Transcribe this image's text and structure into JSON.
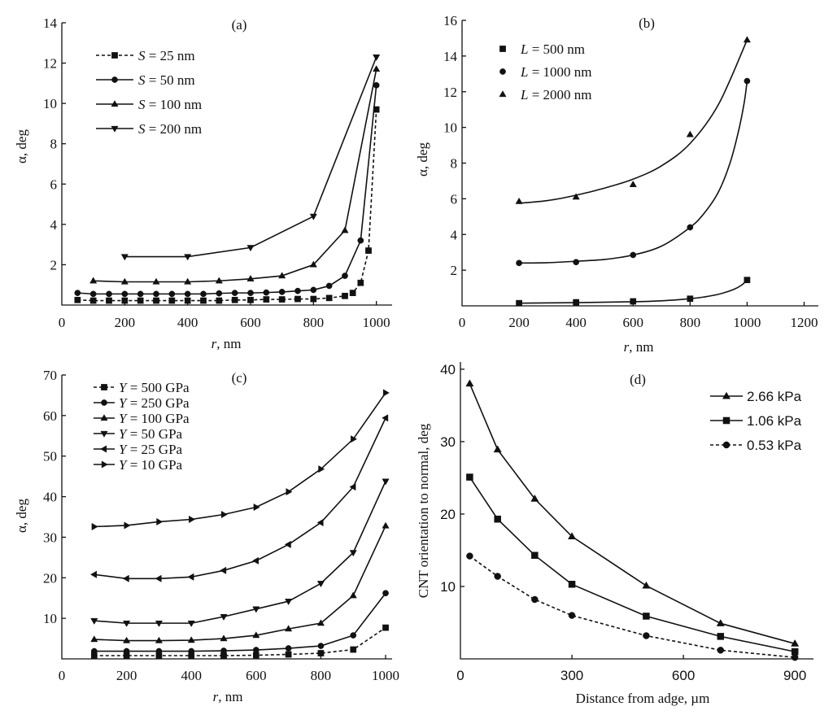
{
  "chart_data": [
    {
      "id": "a",
      "panel_label": "(a)",
      "type": "line",
      "xlabel_var": "r",
      "xlabel_unit": ", nm",
      "ylabel": "α, deg",
      "xlim": [
        0,
        1050
      ],
      "ylim": [
        0,
        14
      ],
      "xticks": [
        0,
        200,
        400,
        600,
        800,
        1000
      ],
      "yticks": [
        2,
        4,
        6,
        8,
        10,
        12,
        14
      ],
      "series": [
        {
          "var": "S",
          "rest": " = 25 nm",
          "marker": "square",
          "dashed": true,
          "x": [
            50,
            100,
            150,
            200,
            250,
            300,
            350,
            400,
            450,
            500,
            550,
            600,
            650,
            700,
            750,
            800,
            850,
            900,
            925,
            950,
            975,
            1000
          ],
          "y": [
            0.25,
            0.22,
            0.22,
            0.22,
            0.22,
            0.22,
            0.22,
            0.22,
            0.22,
            0.22,
            0.25,
            0.25,
            0.28,
            0.28,
            0.3,
            0.3,
            0.35,
            0.45,
            0.6,
            1.1,
            2.7,
            9.7
          ]
        },
        {
          "var": "S",
          "rest": " = 50 nm",
          "marker": "circle",
          "dashed": false,
          "x": [
            50,
            100,
            150,
            200,
            250,
            300,
            350,
            400,
            450,
            500,
            550,
            600,
            650,
            700,
            750,
            800,
            850,
            900,
            950,
            1000
          ],
          "y": [
            0.6,
            0.55,
            0.55,
            0.55,
            0.55,
            0.55,
            0.55,
            0.55,
            0.55,
            0.58,
            0.6,
            0.6,
            0.62,
            0.65,
            0.7,
            0.75,
            0.95,
            1.45,
            3.2,
            10.9
          ]
        },
        {
          "var": "S",
          "rest": " = 100 nm",
          "marker": "triangle-up",
          "dashed": false,
          "x": [
            100,
            200,
            300,
            400,
            500,
            600,
            700,
            800,
            900,
            1000
          ],
          "y": [
            1.2,
            1.15,
            1.15,
            1.15,
            1.2,
            1.3,
            1.45,
            2.0,
            3.7,
            11.7
          ]
        },
        {
          "var": "S",
          "rest": " = 200 nm",
          "marker": "triangle-down",
          "dashed": false,
          "x": [
            200,
            400,
            600,
            800,
            1000
          ],
          "y": [
            2.4,
            2.4,
            2.85,
            4.4,
            12.3
          ]
        }
      ]
    },
    {
      "id": "b",
      "panel_label": "(b)",
      "type": "scatter",
      "xlabel_var": "r",
      "xlabel_unit": ", nm",
      "ylabel": "α, deg",
      "xlim": [
        0,
        1250
      ],
      "ylim": [
        0,
        16
      ],
      "xticks": [
        0,
        200,
        400,
        600,
        800,
        1000,
        1200
      ],
      "yticks": [
        2,
        4,
        6,
        8,
        10,
        12,
        14,
        16
      ],
      "series": [
        {
          "var": "L",
          "rest": " = 500 nm",
          "marker": "square",
          "x": [
            200,
            400,
            600,
            800,
            1000
          ],
          "y": [
            0.15,
            0.2,
            0.25,
            0.4,
            1.45
          ],
          "fit_x": [
            200,
            400,
            600,
            700,
            800,
            850,
            900,
            950,
            980,
            1000
          ],
          "fit_y": [
            0.15,
            0.18,
            0.23,
            0.28,
            0.4,
            0.5,
            0.65,
            0.9,
            1.15,
            1.45
          ]
        },
        {
          "var": "L",
          "rest": " = 1000 nm",
          "marker": "circle",
          "x": [
            200,
            400,
            600,
            800,
            1000
          ],
          "y": [
            2.4,
            2.45,
            2.85,
            4.4,
            12.6
          ],
          "fit_x": [
            200,
            300,
            400,
            500,
            600,
            700,
            800,
            850,
            900,
            940,
            970,
            990,
            1000
          ],
          "fit_y": [
            2.4,
            2.42,
            2.5,
            2.6,
            2.85,
            3.35,
            4.4,
            5.2,
            6.4,
            8.0,
            9.8,
            11.4,
            12.6
          ]
        },
        {
          "var": "L",
          "rest": " = 2000 nm",
          "marker": "triangle-up",
          "x": [
            200,
            400,
            600,
            800,
            1000
          ],
          "y": [
            5.85,
            6.1,
            6.8,
            9.6,
            14.9
          ],
          "fit_x": [
            200,
            300,
            400,
            500,
            600,
            700,
            800,
            900,
            1000
          ],
          "fit_y": [
            5.75,
            5.9,
            6.2,
            6.6,
            7.1,
            7.85,
            9.1,
            11.3,
            14.9
          ]
        }
      ]
    },
    {
      "id": "c",
      "panel_label": "(c)",
      "type": "line",
      "xlabel_var": "r",
      "xlabel_unit": ", nm",
      "ylabel": "α, deg",
      "xlim": [
        0,
        1020
      ],
      "ylim": [
        0,
        70
      ],
      "xticks": [
        0,
        200,
        400,
        600,
        800,
        1000
      ],
      "yticks": [
        10,
        20,
        30,
        40,
        50,
        60,
        70
      ],
      "series": [
        {
          "var": "Y",
          "rest": " = 500 GPa",
          "marker": "square",
          "dashed": true,
          "x": [
            100,
            200,
            300,
            400,
            500,
            600,
            700,
            800,
            900,
            1000
          ],
          "y": [
            0.8,
            0.8,
            0.8,
            0.8,
            0.8,
            0.9,
            1.1,
            1.4,
            2.3,
            7.7
          ]
        },
        {
          "var": "Y",
          "rest": " = 250 GPa",
          "marker": "circle",
          "dashed": false,
          "x": [
            100,
            200,
            300,
            400,
            500,
            600,
            700,
            800,
            900,
            1000
          ],
          "y": [
            1.9,
            1.9,
            1.9,
            1.9,
            2.0,
            2.2,
            2.6,
            3.2,
            5.8,
            16.2
          ]
        },
        {
          "var": "Y",
          "rest": " = 100 GPa",
          "marker": "triangle-up",
          "dashed": false,
          "x": [
            100,
            200,
            300,
            400,
            500,
            600,
            700,
            800,
            900,
            1000
          ],
          "y": [
            4.8,
            4.5,
            4.5,
            4.6,
            5.0,
            5.8,
            7.4,
            8.8,
            15.6,
            32.8
          ]
        },
        {
          "var": "Y",
          "rest": " = 50 GPa",
          "marker": "triangle-down",
          "dashed": false,
          "x": [
            100,
            200,
            300,
            400,
            500,
            600,
            700,
            800,
            900,
            1000
          ],
          "y": [
            9.4,
            8.8,
            8.8,
            8.8,
            10.4,
            12.3,
            14.2,
            18.6,
            26.2,
            43.8
          ]
        },
        {
          "var": "Y",
          "rest": " = 25 GPa",
          "marker": "triangle-left",
          "dashed": false,
          "x": [
            100,
            200,
            300,
            400,
            500,
            600,
            700,
            800,
            900,
            1000
          ],
          "y": [
            20.8,
            19.8,
            19.8,
            20.2,
            21.8,
            24.2,
            28.2,
            33.6,
            42.4,
            59.4
          ]
        },
        {
          "var": "Y",
          "rest": " = 10 GPa",
          "marker": "triangle-right",
          "dashed": false,
          "x": [
            100,
            200,
            300,
            400,
            500,
            600,
            700,
            800,
            900,
            1000
          ],
          "y": [
            32.6,
            32.9,
            33.8,
            34.4,
            35.6,
            37.4,
            41.2,
            46.8,
            54.2,
            65.6
          ]
        }
      ]
    },
    {
      "id": "d",
      "panel_label": "(d)",
      "type": "line",
      "xlabel": "Distance from adge, µm",
      "ylabel": "CNT orientation to normal, deg",
      "xlim": [
        0,
        950
      ],
      "ylim": [
        0,
        41
      ],
      "xticks": [
        0,
        300,
        600,
        900
      ],
      "yticks": [
        10,
        20,
        30,
        40
      ],
      "series": [
        {
          "name": "2.66 kPa",
          "marker": "triangle-up",
          "dashed": false,
          "x": [
            25,
            100,
            200,
            300,
            500,
            700,
            900
          ],
          "y": [
            38.0,
            28.9,
            22.1,
            16.9,
            10.1,
            4.9,
            2.1
          ]
        },
        {
          "name": "1.06 kPa",
          "marker": "square",
          "dashed": false,
          "x": [
            25,
            100,
            200,
            300,
            500,
            700,
            900
          ],
          "y": [
            25.1,
            19.3,
            14.3,
            10.3,
            5.9,
            3.1,
            1.0
          ]
        },
        {
          "name": "0.53 kPa",
          "marker": "circle",
          "dashed": true,
          "x": [
            25,
            100,
            200,
            300,
            500,
            700,
            900
          ],
          "y": [
            14.2,
            11.4,
            8.2,
            6.0,
            3.2,
            1.2,
            0.2
          ]
        }
      ]
    }
  ]
}
